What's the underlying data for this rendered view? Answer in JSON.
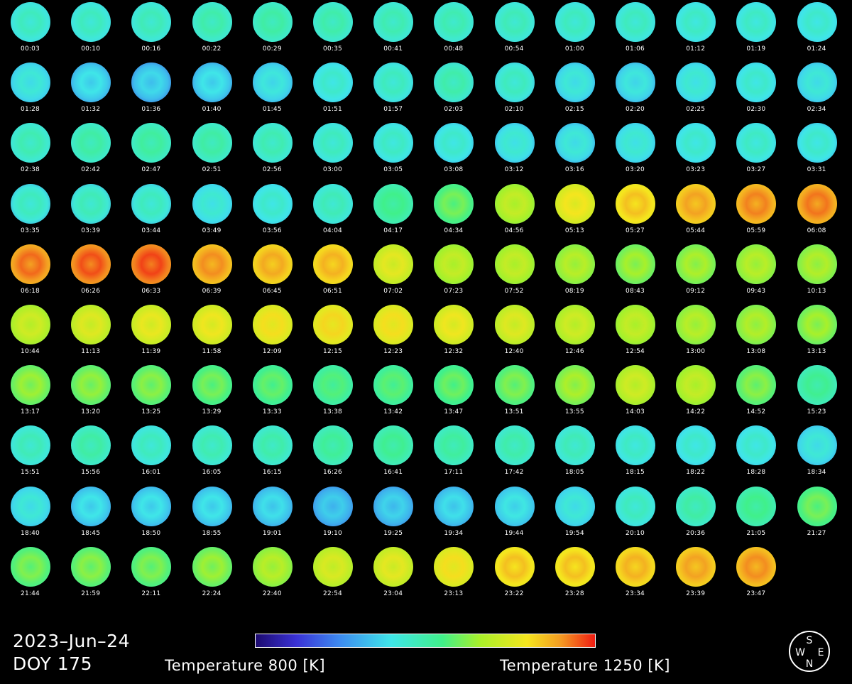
{
  "date": "2023–Jun–24",
  "doy": "DOY 175",
  "colorbar": {
    "min_label": "Temperature 800 [K]",
    "max_label": "Temperature 1250 [K]",
    "min_value": 800,
    "max_value": 1250
  },
  "compass": {
    "north": "N",
    "south": "S",
    "east": "E",
    "west": "W"
  },
  "frames": [
    {
      "time": "00:03",
      "t": 0.42,
      "blue": 0.0
    },
    {
      "time": "00:10",
      "t": 0.42,
      "blue": 0.0
    },
    {
      "time": "00:16",
      "t": 0.43,
      "blue": 0.0
    },
    {
      "time": "00:22",
      "t": 0.45,
      "blue": 0.0
    },
    {
      "time": "00:29",
      "t": 0.46,
      "blue": 0.0
    },
    {
      "time": "00:35",
      "t": 0.45,
      "blue": 0.0
    },
    {
      "time": "00:41",
      "t": 0.44,
      "blue": 0.0
    },
    {
      "time": "00:48",
      "t": 0.44,
      "blue": 0.0
    },
    {
      "time": "00:54",
      "t": 0.43,
      "blue": 0.0
    },
    {
      "time": "01:00",
      "t": 0.42,
      "blue": 0.0
    },
    {
      "time": "01:06",
      "t": 0.42,
      "blue": 0.0
    },
    {
      "time": "01:12",
      "t": 0.41,
      "blue": 0.0
    },
    {
      "time": "01:19",
      "t": 0.41,
      "blue": 0.0
    },
    {
      "time": "01:24",
      "t": 0.4,
      "blue": 0.0
    },
    {
      "time": "01:28",
      "t": 0.38,
      "blue": 0.15
    },
    {
      "time": "01:32",
      "t": 0.35,
      "blue": 0.3
    },
    {
      "time": "01:36",
      "t": 0.33,
      "blue": 0.45
    },
    {
      "time": "01:40",
      "t": 0.35,
      "blue": 0.35
    },
    {
      "time": "01:45",
      "t": 0.37,
      "blue": 0.25
    },
    {
      "time": "01:51",
      "t": 0.4,
      "blue": 0.1
    },
    {
      "time": "01:57",
      "t": 0.42,
      "blue": 0.15
    },
    {
      "time": "02:03",
      "t": 0.45,
      "blue": 0.2
    },
    {
      "time": "02:10",
      "t": 0.42,
      "blue": 0.25
    },
    {
      "time": "02:15",
      "t": 0.38,
      "blue": 0.3
    },
    {
      "time": "02:20",
      "t": 0.37,
      "blue": 0.3
    },
    {
      "time": "02:25",
      "t": 0.39,
      "blue": 0.15
    },
    {
      "time": "02:30",
      "t": 0.4,
      "blue": 0.1
    },
    {
      "time": "02:34",
      "t": 0.38,
      "blue": 0.2
    },
    {
      "time": "02:38",
      "t": 0.44,
      "blue": 0.0
    },
    {
      "time": "02:42",
      "t": 0.46,
      "blue": 0.0
    },
    {
      "time": "02:47",
      "t": 0.47,
      "blue": 0.0
    },
    {
      "time": "02:51",
      "t": 0.46,
      "blue": 0.0
    },
    {
      "time": "02:56",
      "t": 0.44,
      "blue": 0.0
    },
    {
      "time": "03:00",
      "t": 0.42,
      "blue": 0.0
    },
    {
      "time": "03:05",
      "t": 0.41,
      "blue": 0.1
    },
    {
      "time": "03:08",
      "t": 0.4,
      "blue": 0.3
    },
    {
      "time": "03:12",
      "t": 0.39,
      "blue": 0.35
    },
    {
      "time": "03:16",
      "t": 0.38,
      "blue": 0.4
    },
    {
      "time": "03:20",
      "t": 0.39,
      "blue": 0.15
    },
    {
      "time": "03:23",
      "t": 0.4,
      "blue": 0.05
    },
    {
      "time": "03:27",
      "t": 0.41,
      "blue": 0.05
    },
    {
      "time": "03:31",
      "t": 0.4,
      "blue": 0.3
    },
    {
      "time": "03:35",
      "t": 0.42,
      "blue": 0.45
    },
    {
      "time": "03:39",
      "t": 0.43,
      "blue": 0.4
    },
    {
      "time": "03:44",
      "t": 0.42,
      "blue": 0.35
    },
    {
      "time": "03:49",
      "t": 0.39,
      "blue": 0.05
    },
    {
      "time": "03:56",
      "t": 0.4,
      "blue": 0.05
    },
    {
      "time": "04:04",
      "t": 0.43,
      "blue": 0.0
    },
    {
      "time": "04:17",
      "t": 0.5,
      "blue": 0.0
    },
    {
      "time": "04:34",
      "t": 0.56,
      "blue": 0.0
    },
    {
      "time": "04:56",
      "t": 0.66,
      "blue": 0.0
    },
    {
      "time": "05:13",
      "t": 0.75,
      "blue": 0.0
    },
    {
      "time": "05:27",
      "t": 0.8,
      "blue": 0.0
    },
    {
      "time": "05:44",
      "t": 0.84,
      "blue": 0.0
    },
    {
      "time": "05:59",
      "t": 0.87,
      "blue": 0.0
    },
    {
      "time": "06:08",
      "t": 0.88,
      "blue": 0.0
    },
    {
      "time": "06:18",
      "t": 0.89,
      "blue": 0.0
    },
    {
      "time": "06:26",
      "t": 0.91,
      "blue": 0.0
    },
    {
      "time": "06:33",
      "t": 0.92,
      "blue": 0.0
    },
    {
      "time": "06:39",
      "t": 0.86,
      "blue": 0.0
    },
    {
      "time": "06:45",
      "t": 0.83,
      "blue": 0.0
    },
    {
      "time": "06:51",
      "t": 0.82,
      "blue": 0.0
    },
    {
      "time": "07:02",
      "t": 0.72,
      "blue": 0.0
    },
    {
      "time": "07:23",
      "t": 0.66,
      "blue": 0.0
    },
    {
      "time": "07:52",
      "t": 0.66,
      "blue": 0.0
    },
    {
      "time": "08:19",
      "t": 0.64,
      "blue": 0.0
    },
    {
      "time": "08:43",
      "t": 0.61,
      "blue": 0.0
    },
    {
      "time": "09:12",
      "t": 0.62,
      "blue": 0.0
    },
    {
      "time": "09:43",
      "t": 0.64,
      "blue": 0.0
    },
    {
      "time": "10:13",
      "t": 0.63,
      "blue": 0.0
    },
    {
      "time": "10:44",
      "t": 0.68,
      "blue": 0.0
    },
    {
      "time": "11:13",
      "t": 0.71,
      "blue": 0.0
    },
    {
      "time": "11:39",
      "t": 0.73,
      "blue": 0.0
    },
    {
      "time": "11:58",
      "t": 0.74,
      "blue": 0.0
    },
    {
      "time": "12:09",
      "t": 0.76,
      "blue": 0.0
    },
    {
      "time": "12:15",
      "t": 0.77,
      "blue": 0.0
    },
    {
      "time": "12:23",
      "t": 0.76,
      "blue": 0.0
    },
    {
      "time": "12:32",
      "t": 0.74,
      "blue": 0.0
    },
    {
      "time": "12:40",
      "t": 0.71,
      "blue": 0.0
    },
    {
      "time": "12:46",
      "t": 0.68,
      "blue": 0.0
    },
    {
      "time": "12:54",
      "t": 0.66,
      "blue": 0.0
    },
    {
      "time": "13:00",
      "t": 0.64,
      "blue": 0.0
    },
    {
      "time": "13:08",
      "t": 0.63,
      "blue": 0.0
    },
    {
      "time": "13:13",
      "t": 0.61,
      "blue": 0.0
    },
    {
      "time": "13:17",
      "t": 0.6,
      "blue": 0.0
    },
    {
      "time": "13:20",
      "t": 0.59,
      "blue": 0.0
    },
    {
      "time": "13:25",
      "t": 0.58,
      "blue": 0.0
    },
    {
      "time": "13:29",
      "t": 0.56,
      "blue": 0.0
    },
    {
      "time": "13:33",
      "t": 0.54,
      "blue": 0.0
    },
    {
      "time": "13:38",
      "t": 0.52,
      "blue": 0.0
    },
    {
      "time": "13:42",
      "t": 0.53,
      "blue": 0.0
    },
    {
      "time": "13:47",
      "t": 0.55,
      "blue": 0.0
    },
    {
      "time": "13:51",
      "t": 0.57,
      "blue": 0.0
    },
    {
      "time": "13:55",
      "t": 0.62,
      "blue": 0.0
    },
    {
      "time": "14:03",
      "t": 0.68,
      "blue": 0.0
    },
    {
      "time": "14:22",
      "t": 0.66,
      "blue": 0.0
    },
    {
      "time": "14:52",
      "t": 0.58,
      "blue": 0.0
    },
    {
      "time": "15:23",
      "t": 0.49,
      "blue": 0.0
    },
    {
      "time": "15:51",
      "t": 0.43,
      "blue": 0.0
    },
    {
      "time": "15:56",
      "t": 0.46,
      "blue": 0.0
    },
    {
      "time": "16:01",
      "t": 0.42,
      "blue": 0.0
    },
    {
      "time": "16:05",
      "t": 0.44,
      "blue": 0.0
    },
    {
      "time": "16:15",
      "t": 0.45,
      "blue": 0.0
    },
    {
      "time": "16:26",
      "t": 0.48,
      "blue": 0.0
    },
    {
      "time": "16:41",
      "t": 0.49,
      "blue": 0.0
    },
    {
      "time": "17:11",
      "t": 0.47,
      "blue": 0.0
    },
    {
      "time": "17:42",
      "t": 0.45,
      "blue": 0.0
    },
    {
      "time": "18:05",
      "t": 0.43,
      "blue": 0.0
    },
    {
      "time": "18:15",
      "t": 0.41,
      "blue": 0.1
    },
    {
      "time": "18:22",
      "t": 0.4,
      "blue": 0.15
    },
    {
      "time": "18:28",
      "t": 0.4,
      "blue": 0.1
    },
    {
      "time": "18:34",
      "t": 0.38,
      "blue": 0.2
    },
    {
      "time": "18:40",
      "t": 0.38,
      "blue": 0.1
    },
    {
      "time": "18:45",
      "t": 0.35,
      "blue": 0.2
    },
    {
      "time": "18:50",
      "t": 0.35,
      "blue": 0.2
    },
    {
      "time": "18:55",
      "t": 0.35,
      "blue": 0.2
    },
    {
      "time": "19:01",
      "t": 0.34,
      "blue": 0.2
    },
    {
      "time": "19:10",
      "t": 0.31,
      "blue": 0.25
    },
    {
      "time": "19:25",
      "t": 0.32,
      "blue": 0.25
    },
    {
      "time": "19:34",
      "t": 0.34,
      "blue": 0.2
    },
    {
      "time": "19:44",
      "t": 0.36,
      "blue": 0.1
    },
    {
      "time": "19:54",
      "t": 0.38,
      "blue": 0.05
    },
    {
      "time": "20:10",
      "t": 0.42,
      "blue": 0.0
    },
    {
      "time": "20:36",
      "t": 0.46,
      "blue": 0.0
    },
    {
      "time": "21:05",
      "t": 0.5,
      "blue": 0.0
    },
    {
      "time": "21:27",
      "t": 0.56,
      "blue": 0.0
    },
    {
      "time": "21:44",
      "t": 0.57,
      "blue": 0.0
    },
    {
      "time": "21:59",
      "t": 0.58,
      "blue": 0.0
    },
    {
      "time": "22:11",
      "t": 0.57,
      "blue": 0.0
    },
    {
      "time": "22:24",
      "t": 0.6,
      "blue": 0.0
    },
    {
      "time": "22:40",
      "t": 0.64,
      "blue": 0.0
    },
    {
      "time": "22:54",
      "t": 0.7,
      "blue": 0.0
    },
    {
      "time": "23:04",
      "t": 0.72,
      "blue": 0.0
    },
    {
      "time": "23:13",
      "t": 0.76,
      "blue": 0.0
    },
    {
      "time": "23:22",
      "t": 0.8,
      "blue": 0.0
    },
    {
      "time": "23:28",
      "t": 0.8,
      "blue": 0.0
    },
    {
      "time": "23:34",
      "t": 0.82,
      "blue": 0.0
    },
    {
      "time": "23:39",
      "t": 0.84,
      "blue": 0.0
    },
    {
      "time": "23:47",
      "t": 0.86,
      "blue": 0.0
    }
  ]
}
